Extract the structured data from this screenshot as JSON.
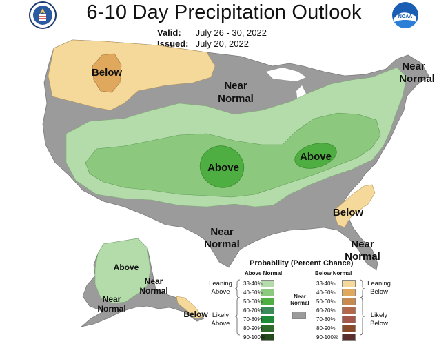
{
  "title": "6-10 Day Precipitation Outlook",
  "valid_label": "Valid:",
  "valid_dates": "July 26 - 30, 2022",
  "issued_label": "Issued:",
  "issued_date": "July 20, 2022",
  "regions": {
    "below_northwest": "Below",
    "near_normal_north": [
      "Near",
      "Normal"
    ],
    "near_normal_northeast": [
      "Near",
      "Normal"
    ],
    "above_plains": "Above",
    "above_ohio_valley": "Above",
    "below_southeast": "Below",
    "near_normal_south": [
      "Near",
      "Normal"
    ],
    "near_normal_florida": [
      "Near",
      "Normal"
    ],
    "alaska_above": "Above",
    "alaska_near_normal_east": [
      "Near",
      "Normal"
    ],
    "alaska_near_normal_west": [
      "Near",
      "Normal"
    ],
    "alaska_below_panhandle": "Below"
  },
  "legend": {
    "title": "Probability (Percent Chance)",
    "above_header": "Above Normal",
    "below_header": "Below Normal",
    "near_header": [
      "Near",
      "Normal"
    ],
    "above_ranges": [
      "33-40%",
      "40-50%",
      "50-60%",
      "60-70%",
      "70-80%",
      "80-90%",
      "90-100%"
    ],
    "below_ranges": [
      "33-40%",
      "40-50%",
      "50-60%",
      "60-70%",
      "70-80%",
      "80-90%",
      "90-100%"
    ],
    "leaning_above": [
      "Leaning",
      "Above"
    ],
    "likely_above": [
      "Likely",
      "Above"
    ],
    "leaning_below": [
      "Leaning",
      "Below"
    ],
    "likely_below": [
      "Likely",
      "Below"
    ]
  },
  "colors": {
    "above": [
      "#b3dcaa",
      "#8cc97f",
      "#4fae41",
      "#3a8a5a",
      "#1f8a37",
      "#2e6a2c",
      "#254a1e"
    ],
    "below": [
      "#f5d99a",
      "#dfa85c",
      "#c98a4f",
      "#b4684b",
      "#a5584a",
      "#8b4a2a",
      "#5a2f2e"
    ],
    "near": "#9b9b9b"
  }
}
